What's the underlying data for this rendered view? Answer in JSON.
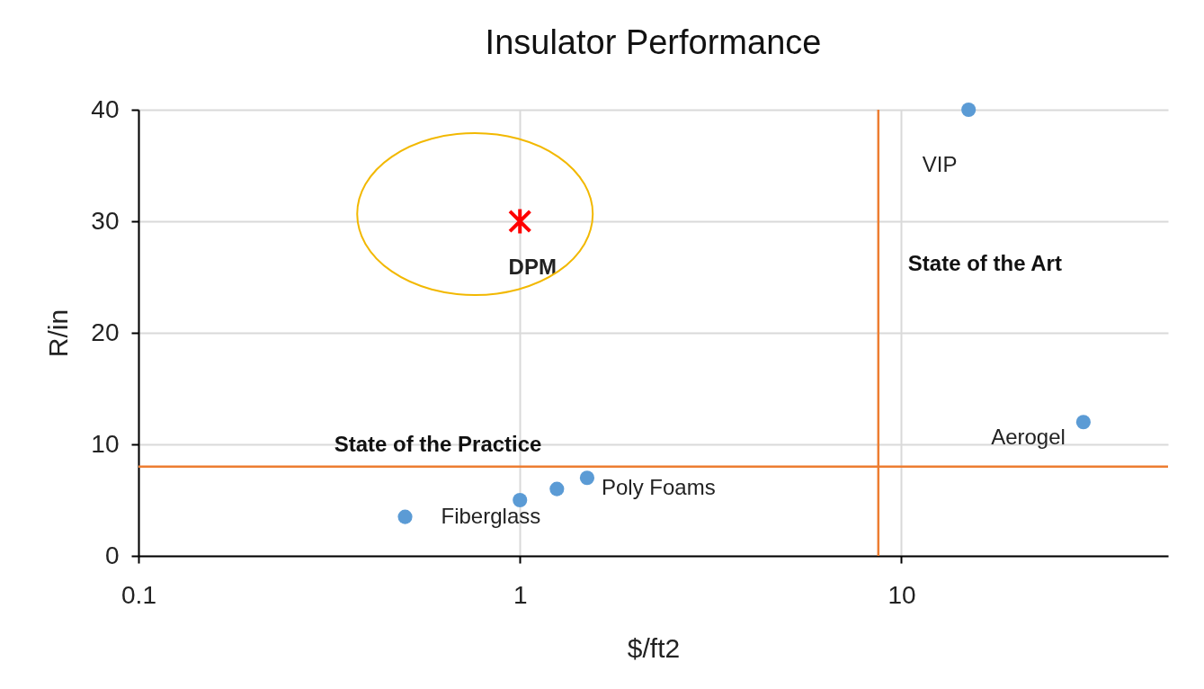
{
  "chart_data": {
    "type": "scatter",
    "title": "Insulator Performance",
    "xlabel": "$/ft2",
    "ylabel": "R/in",
    "log": "x",
    "xlim": [
      0.1,
      50
    ],
    "xticks": [
      0.1,
      1,
      10
    ],
    "ylim": [
      0,
      40
    ],
    "yticks": [
      0,
      10,
      20,
      30,
      40
    ],
    "grid": true,
    "marker": "circle",
    "series": [
      {
        "color": "#5b9bd5",
        "x": [
          0.5,
          1,
          1.25,
          1.5,
          15,
          30
        ],
        "values": [
          3.5,
          5,
          6,
          7,
          40,
          12
        ]
      },
      {
        "name": "DPM",
        "color": "#ff0000",
        "marker": "cross",
        "x": [
          1
        ],
        "values": [
          30
        ]
      }
    ],
    "annotations": [
      {
        "text": "Fiberglass",
        "x": 0.5,
        "y": 3.5
      },
      {
        "text": "Poly Foams",
        "x": 1.5,
        "y": 7
      },
      {
        "text": "VIP",
        "x": 15,
        "y": 40
      },
      {
        "text": "Aerogel",
        "x": 30,
        "y": 12
      }
    ],
    "ref_lines": [
      {
        "axis": "y",
        "value": 8,
        "label": "State of the Practice",
        "color": "#ed7d31"
      },
      {
        "axis": "x",
        "value": 8.7,
        "label": "State of the Art",
        "color": "#ed7d31"
      }
    ]
  }
}
